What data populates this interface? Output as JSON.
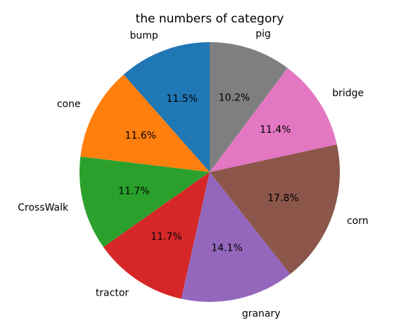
{
  "chart_data": {
    "type": "pie",
    "title": "the numbers of category",
    "start_angle_deg": 90,
    "direction": "counterclockwise",
    "slices": [
      {
        "label": "bump",
        "value": 11.5,
        "pct_label": "11.5%",
        "color": "#1f77b4"
      },
      {
        "label": "cone",
        "value": 11.6,
        "pct_label": "11.6%",
        "color": "#ff7f0e"
      },
      {
        "label": "CrossWalk",
        "value": 11.7,
        "pct_label": "11.7%",
        "color": "#2ca02c"
      },
      {
        "label": "tractor",
        "value": 11.7,
        "pct_label": "11.7%",
        "color": "#d62728"
      },
      {
        "label": "granary",
        "value": 14.1,
        "pct_label": "14.1%",
        "color": "#9467bd"
      },
      {
        "label": "corn",
        "value": 17.8,
        "pct_label": "17.8%",
        "color": "#8c564b"
      },
      {
        "label": "bridge",
        "value": 11.4,
        "pct_label": "11.4%",
        "color": "#e377c2"
      },
      {
        "label": "pig",
        "value": 10.2,
        "pct_label": "10.2%",
        "color": "#7f7f7f"
      }
    ]
  }
}
